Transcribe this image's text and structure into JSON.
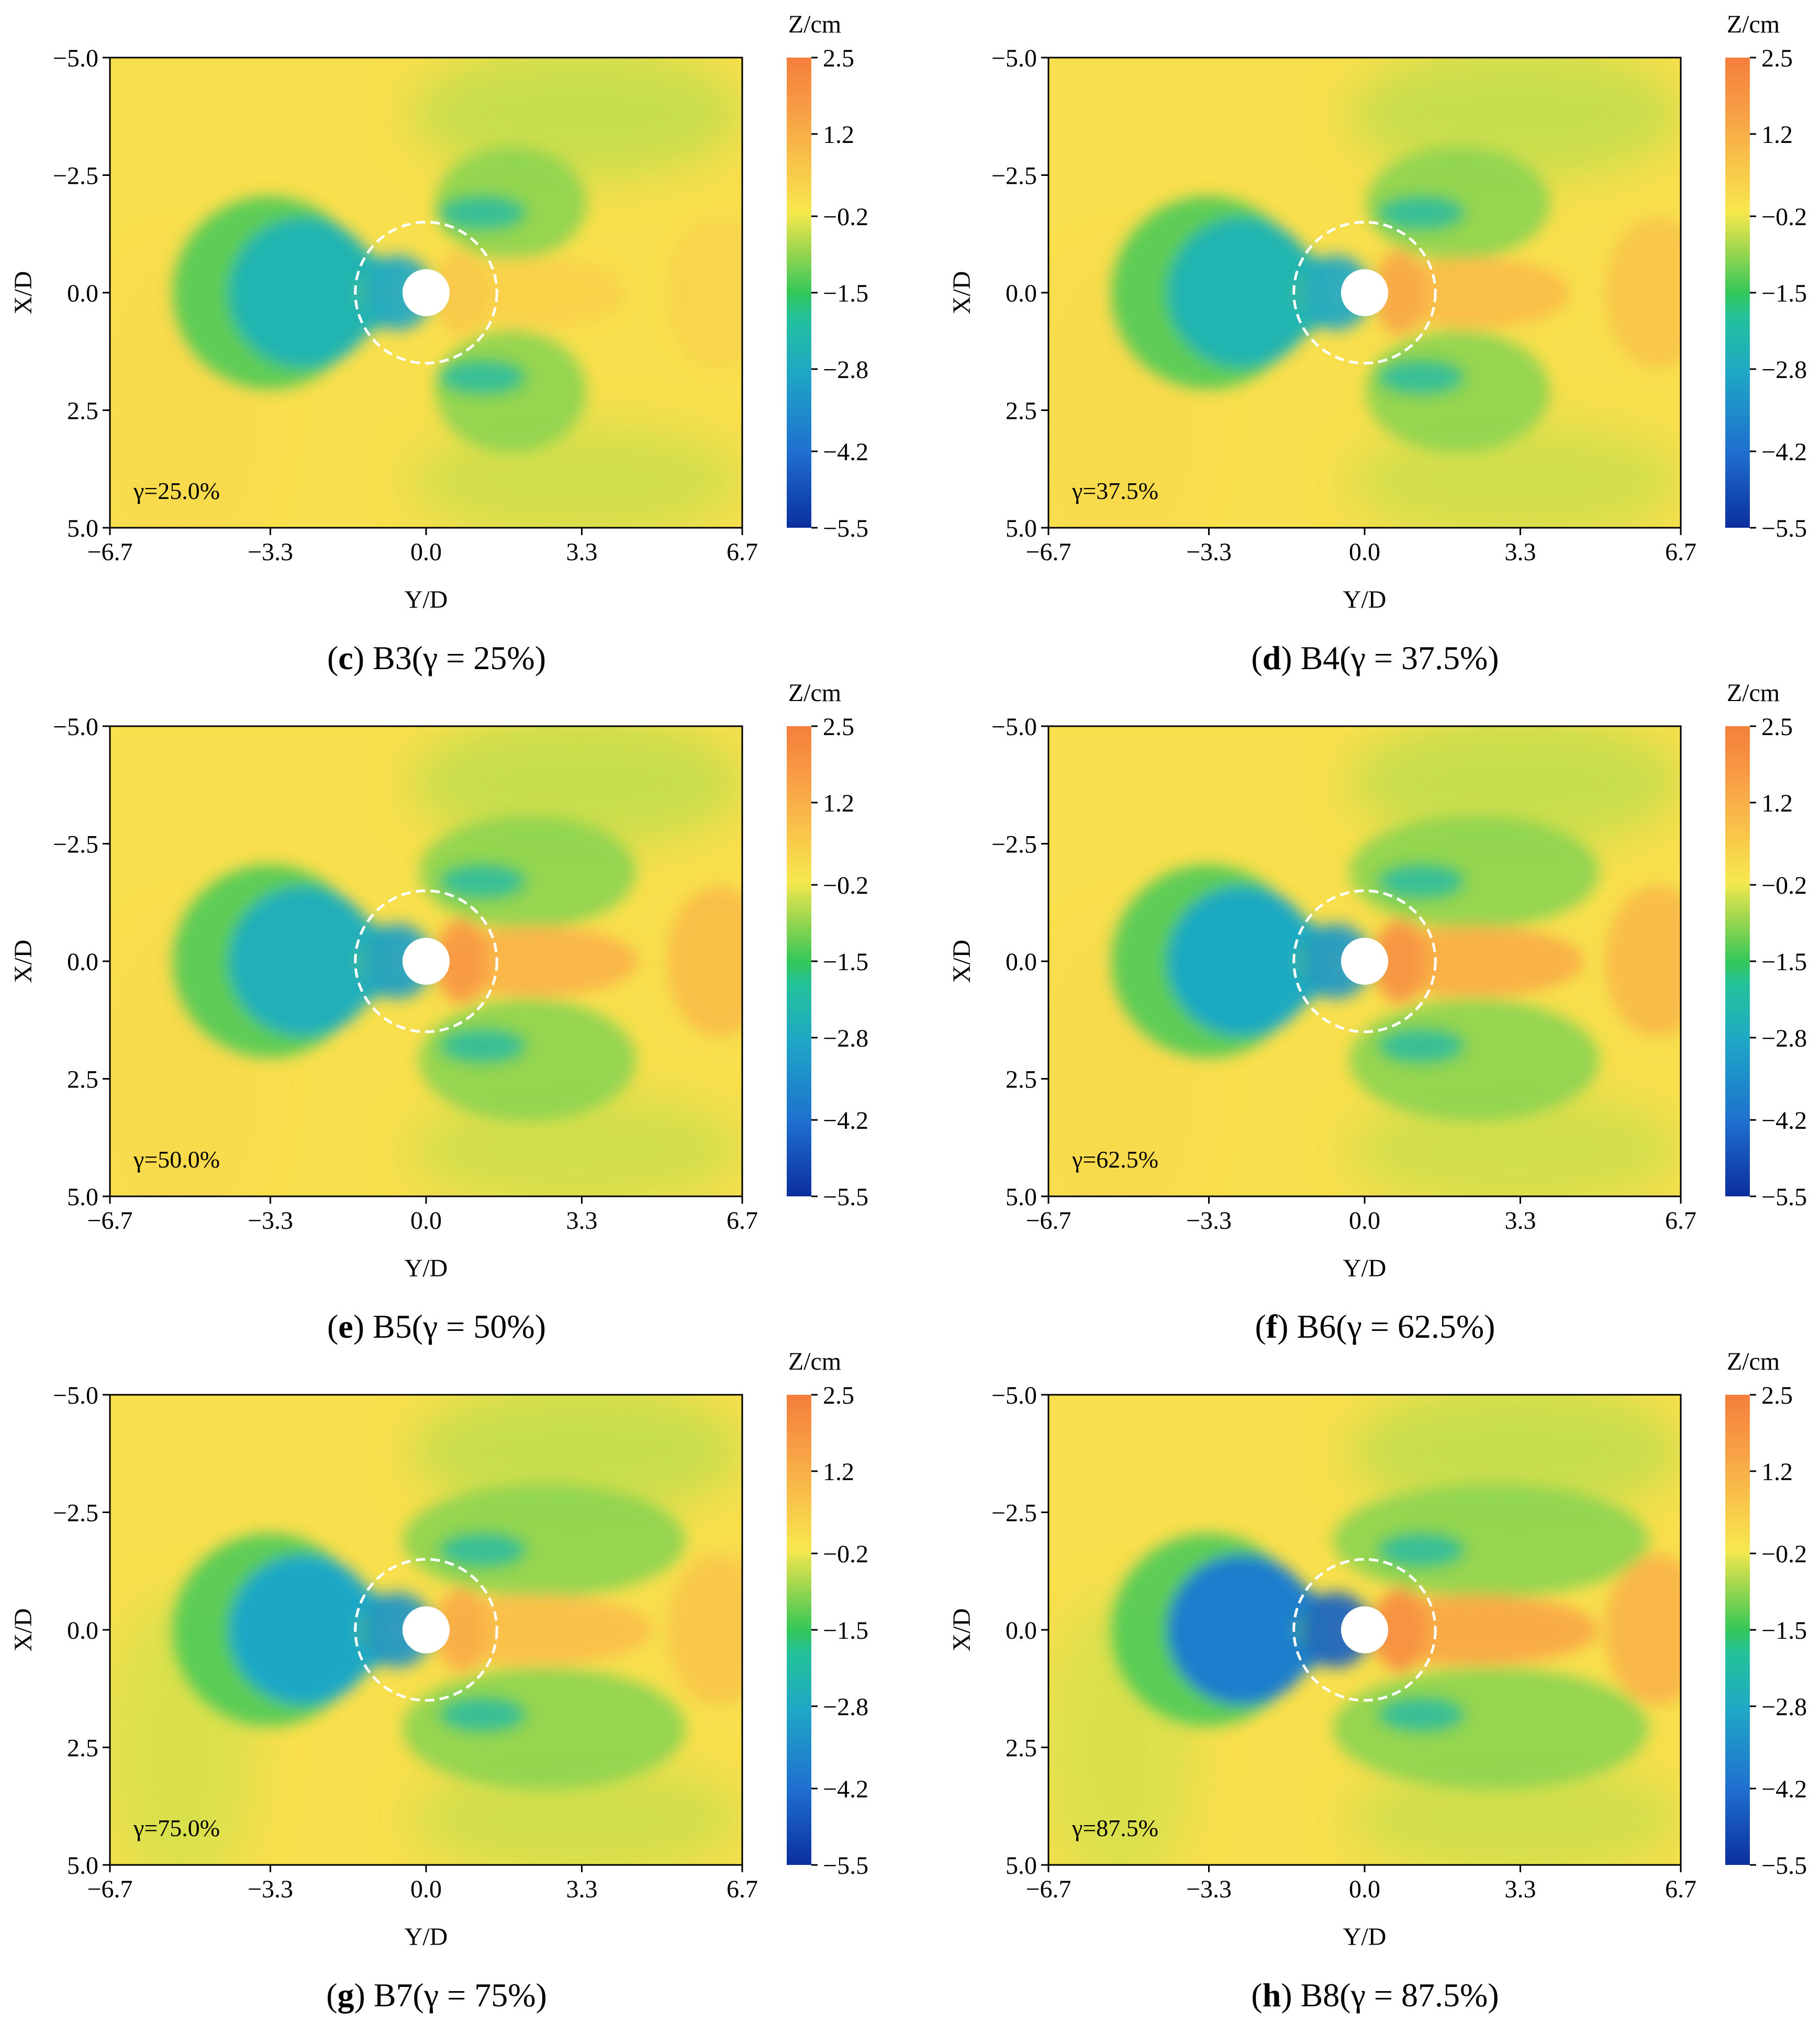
{
  "chart_data": [
    {
      "type": "heatmap",
      "caption": {
        "paren_open": "(",
        "letter": "c",
        "rest": ") B3(γ = 25%)"
      },
      "gamma_label": "γ=25.0%",
      "xlabel": "Y/D",
      "ylabel": "X/D",
      "xticks": [
        "−6.7",
        "−3.3",
        "0.0",
        "3.3",
        "6.7"
      ],
      "yticks": [
        "−5.0",
        "−2.5",
        "0.0",
        "2.5",
        "5.0"
      ],
      "xlim": [
        -6.7,
        6.7
      ],
      "ylim": [
        -5.0,
        5.0
      ],
      "colorbar": {
        "title": "Z/cm",
        "ticks": [
          "2.5",
          "1.2",
          "−0.2",
          "−1.5",
          "−2.8",
          "−4.2",
          "−5.5"
        ],
        "range": [
          -5.5,
          2.5
        ]
      },
      "scour_hole": {
        "depth_min": -2.8,
        "extent_dd": 1.5
      },
      "wake": {
        "deposition_max": 0.3
      }
    },
    {
      "type": "heatmap",
      "caption": {
        "paren_open": "(",
        "letter": "d",
        "rest": ") B4(γ = 37.5%)"
      },
      "gamma_label": "γ=37.5%",
      "xlabel": "Y/D",
      "ylabel": "X/D",
      "xticks": [
        "−6.7",
        "−3.3",
        "0.0",
        "3.3",
        "6.7"
      ],
      "yticks": [
        "−5.0",
        "−2.5",
        "0.0",
        "2.5",
        "5.0"
      ],
      "xlim": [
        -6.7,
        6.7
      ],
      "ylim": [
        -5.0,
        5.0
      ],
      "colorbar": {
        "title": "Z/cm",
        "ticks": [
          "2.5",
          "1.2",
          "−0.2",
          "−1.5",
          "−2.8",
          "−4.2",
          "−5.5"
        ],
        "range": [
          -5.5,
          2.5
        ]
      },
      "scour_hole": {
        "depth_min": -2.8,
        "extent_dd": 1.5
      },
      "wake": {
        "deposition_max": 0.9
      }
    },
    {
      "type": "heatmap",
      "caption": {
        "paren_open": "(",
        "letter": "e",
        "rest": ") B5(γ = 50%)"
      },
      "gamma_label": "γ=50.0%",
      "xlabel": "Y/D",
      "ylabel": "X/D",
      "xticks": [
        "−6.7",
        "−3.3",
        "0.0",
        "3.3",
        "6.7"
      ],
      "yticks": [
        "−5.0",
        "−2.5",
        "0.0",
        "2.5",
        "5.0"
      ],
      "xlim": [
        -6.7,
        6.7
      ],
      "ylim": [
        -5.0,
        5.0
      ],
      "colorbar": {
        "title": "Z/cm",
        "ticks": [
          "2.5",
          "1.2",
          "−0.2",
          "−1.5",
          "−2.8",
          "−4.2",
          "−5.5"
        ],
        "range": [
          -5.5,
          2.5
        ]
      },
      "scour_hole": {
        "depth_min": -3.0,
        "extent_dd": 1.5
      },
      "wake": {
        "deposition_max": 1.2
      }
    },
    {
      "type": "heatmap",
      "caption": {
        "paren_open": "(",
        "letter": "f",
        "rest": ") B6(γ = 62.5%)"
      },
      "gamma_label": "γ=62.5%",
      "xlabel": "Y/D",
      "ylabel": "X/D",
      "xticks": [
        "−6.7",
        "−3.3",
        "0.0",
        "3.3",
        "6.7"
      ],
      "yticks": [
        "−5.0",
        "−2.5",
        "0.0",
        "2.5",
        "5.0"
      ],
      "xlim": [
        -6.7,
        6.7
      ],
      "ylim": [
        -5.0,
        5.0
      ],
      "colorbar": {
        "title": "Z/cm",
        "ticks": [
          "2.5",
          "1.2",
          "−0.2",
          "−1.5",
          "−2.8",
          "−4.2",
          "−5.5"
        ],
        "range": [
          -5.5,
          2.5
        ]
      },
      "scour_hole": {
        "depth_min": -3.2,
        "extent_dd": 1.5
      },
      "wake": {
        "deposition_max": 1.4
      }
    },
    {
      "type": "heatmap",
      "caption": {
        "paren_open": "(",
        "letter": "g",
        "rest": ") B7(γ = 75%)"
      },
      "gamma_label": "γ=75.0%",
      "xlabel": "Y/D",
      "ylabel": "X/D",
      "xticks": [
        "−6.7",
        "−3.3",
        "0.0",
        "3.3",
        "6.7"
      ],
      "yticks": [
        "−5.0",
        "−2.5",
        "0.0",
        "2.5",
        "5.0"
      ],
      "xlim": [
        -6.7,
        6.7
      ],
      "ylim": [
        -5.0,
        5.0
      ],
      "colorbar": {
        "title": "Z/cm",
        "ticks": [
          "2.5",
          "1.2",
          "−0.2",
          "−1.5",
          "−2.8",
          "−4.2",
          "−5.5"
        ],
        "range": [
          -5.5,
          2.5
        ]
      },
      "scour_hole": {
        "depth_min": -3.3,
        "extent_dd": 1.5
      },
      "wake": {
        "deposition_max": 0.8
      }
    },
    {
      "type": "heatmap",
      "caption": {
        "paren_open": "(",
        "letter": "h",
        "rest": ") B8(γ = 87.5%)"
      },
      "gamma_label": "γ=87.5%",
      "xlabel": "Y/D",
      "ylabel": "X/D",
      "xticks": [
        "−6.7",
        "−3.3",
        "0.0",
        "3.3",
        "6.7"
      ],
      "yticks": [
        "−5.0",
        "−2.5",
        "0.0",
        "2.5",
        "5.0"
      ],
      "xlim": [
        -6.7,
        6.7
      ],
      "ylim": [
        -5.0,
        5.0
      ],
      "colorbar": {
        "title": "Z/cm",
        "ticks": [
          "2.5",
          "1.2",
          "−0.2",
          "−1.5",
          "−2.8",
          "−4.2",
          "−5.5"
        ],
        "range": [
          -5.5,
          2.5
        ]
      },
      "scour_hole": {
        "depth_min": -4.5,
        "extent_dd": 1.5
      },
      "wake": {
        "deposition_max": 1.6
      }
    }
  ],
  "colors": {
    "background_bed": "#f5e45c",
    "pier": "#ffffff",
    "scour_outline": "#ffffff",
    "colorbar_stops": [
      "#0b2e9e",
      "#1f6fcf",
      "#1fa7c6",
      "#24c29a",
      "#34c759",
      "#a8d84e",
      "#f7e84e",
      "#f9c24a",
      "#f89a45",
      "#f47e3c"
    ]
  }
}
